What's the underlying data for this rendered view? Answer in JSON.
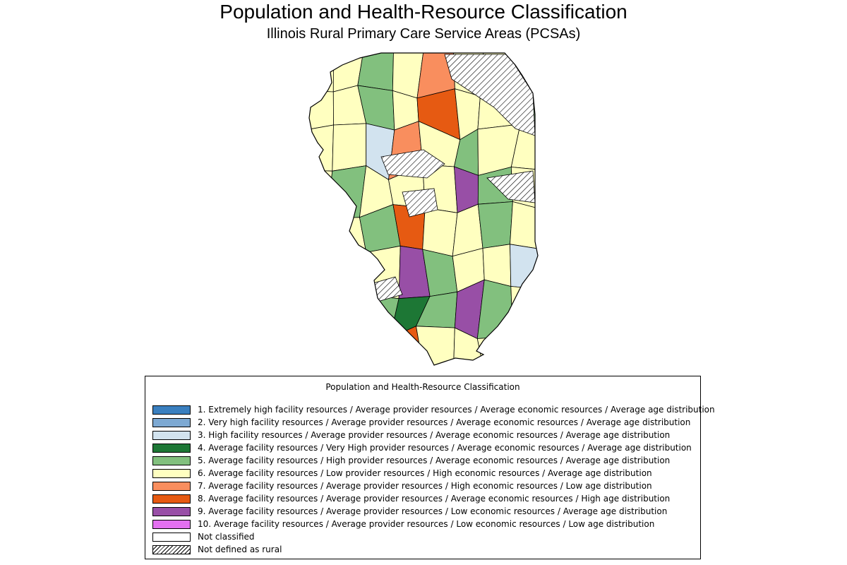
{
  "map": {
    "title": "Population and Health-Resource Classification",
    "subtitle": "Illinois Rural Primary Care Service Areas (PCSAs)",
    "region_fills": [
      "#ffffc0",
      "#ffffc0",
      "#82c07e",
      "#ffffc0",
      "#f98e5e",
      "#ffffc0",
      "#ffffc0",
      "#82c07e",
      "#ffffc0",
      "#ffffc0",
      "#82c07e",
      "#ffffc0",
      "#e65a12",
      "#ffffc0",
      "#ffffc0",
      "#82c07e",
      "#ffffc0",
      "#ffffc0",
      "#d2e3ef",
      "#f98e5e",
      "#ffffc0",
      "#82c07e",
      "#ffffc0",
      "#ffffc0",
      "#ffffc0",
      "#82c07e",
      "#ffffc0",
      "#ffffc0",
      "#ffffc0",
      "#984fa6",
      "#82c07e",
      "#ffffc0",
      "#ffffc0",
      "#ffffc0",
      "#82c07e",
      "#e65a12",
      "#ffffc0",
      "#ffffc0",
      "#82c07e",
      "#ffffc0",
      "#82c07e",
      "#ffffc0",
      "#ffffc0",
      "#984fa6",
      "#82c07e",
      "#ffffc0",
      "#ffffc0",
      "#d2e3ef",
      "#e65a12",
      "#ffffc0",
      "#82c07e",
      "#1d7735",
      "#82c07e",
      "#984fa6",
      "#82c07e",
      "#ffffc0",
      "#f98e5e",
      "#984fa6",
      "#82c07e",
      "#e65a12",
      "#ffffc0",
      "#ffffc0",
      "#ffffc0",
      "#e65a12"
    ]
  },
  "legend": {
    "title": "Population and Health-Resource Classification",
    "items": [
      {
        "color": "#3a7fbf",
        "pattern": "solid",
        "label": "1. Extremely high facility resources / Average provider resources / Average economic resources / Average age distribution"
      },
      {
        "color": "#7da9d3",
        "pattern": "solid",
        "label": "2. Very high facility resources / Average provider resources / Average economic resources / Average age distribution"
      },
      {
        "color": "#d2e3ef",
        "pattern": "solid",
        "label": "3. High facility resources / Average provider resources / Average economic resources / Average age distribution"
      },
      {
        "color": "#1d7735",
        "pattern": "solid",
        "label": "4. Average facility resources / Very High provider resources / Average economic resources / Average age distribution"
      },
      {
        "color": "#82c07e",
        "pattern": "solid",
        "label": "5. Average facility resources / High provider resources / Average economic resources / Average age distribution"
      },
      {
        "color": "#ffffc0",
        "pattern": "solid",
        "label": "6. Average facility resources / Low provider resources / High economic resources / Average age distribution"
      },
      {
        "color": "#f98e5e",
        "pattern": "solid",
        "label": "7. Average facility resources / Average provider resources / High economic resources / Low age distribution"
      },
      {
        "color": "#e65a12",
        "pattern": "solid",
        "label": "8. Average facility resources / Average provider resources / Average economic resources / High age distribution"
      },
      {
        "color": "#984fa6",
        "pattern": "solid",
        "label": "9. Average facility resources / Average provider resources / Low economic resources / Average age distribution"
      },
      {
        "color": "#e370f0",
        "pattern": "solid",
        "label": "10. Average facility resources / Average provider resources / Low economic resources / Low age distribution"
      },
      {
        "color": "#ffffff",
        "pattern": "solid",
        "label": "Not classified"
      },
      {
        "color": "#ffffff",
        "pattern": "hatch",
        "label": "Not defined as rural"
      }
    ]
  }
}
